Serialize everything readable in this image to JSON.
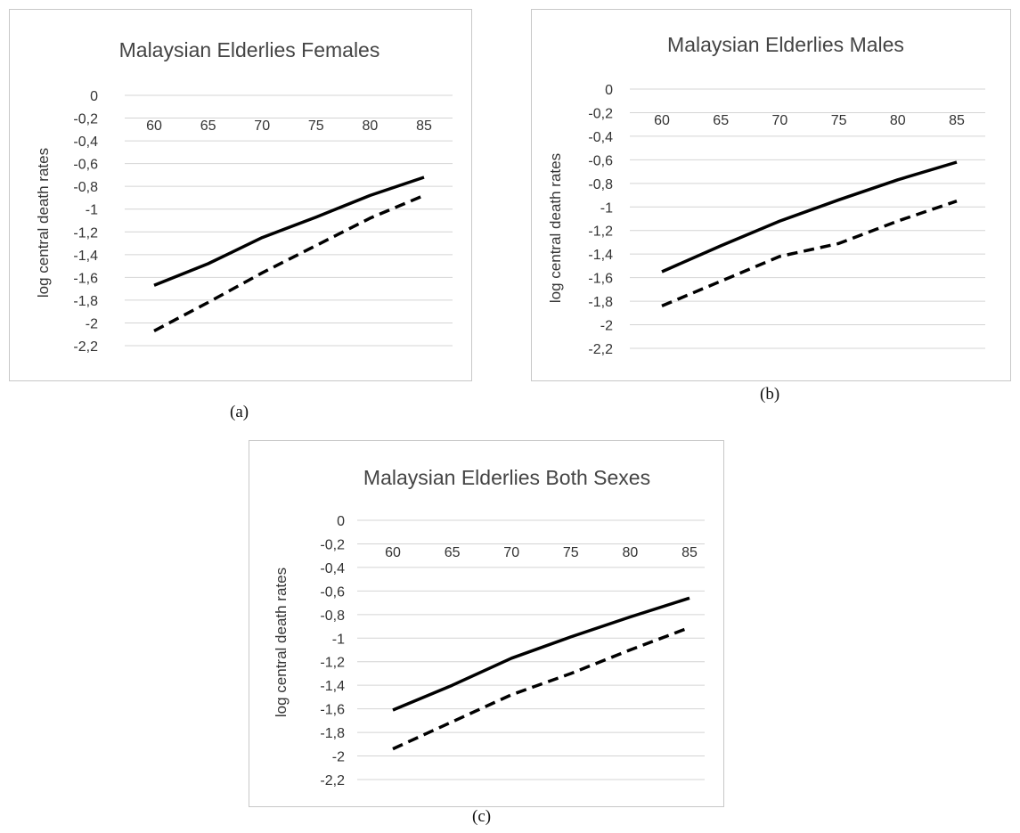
{
  "captions": [
    "(a)",
    "(b)",
    "(c)"
  ],
  "chart_data": [
    {
      "type": "line",
      "title": "Malaysian Elderlies Females",
      "ylabel": "log central death rates",
      "xlabel": "",
      "categories": [
        "60",
        "65",
        "70",
        "75",
        "80",
        "85"
      ],
      "yticks": [
        "0",
        "-0,2",
        "-0,4",
        "-0,6",
        "-0,8",
        "-1",
        "-1,2",
        "-1,4",
        "-1,6",
        "-1,8",
        "-2",
        "-2,2"
      ],
      "ylim": [
        -2.2,
        0
      ],
      "grid": true,
      "x_axis_position": "top",
      "series": [
        {
          "style": "solid",
          "color": "#000000",
          "values": [
            -1.67,
            -1.48,
            -1.25,
            -1.07,
            -0.88,
            -0.72
          ]
        },
        {
          "style": "dashed",
          "color": "#000000",
          "values": [
            -2.07,
            -1.82,
            -1.56,
            -1.32,
            -1.08,
            -0.88
          ]
        }
      ]
    },
    {
      "type": "line",
      "title": "Malaysian Elderlies Males",
      "ylabel": "log central death rates",
      "xlabel": "",
      "categories": [
        "60",
        "65",
        "70",
        "75",
        "80",
        "85"
      ],
      "yticks": [
        "0",
        "-0,2",
        "-0,4",
        "-0,6",
        "-0,8",
        "-1",
        "-1,2",
        "-1,4",
        "-1,6",
        "-1,8",
        "-2",
        "-2,2"
      ],
      "ylim": [
        -2.2,
        0
      ],
      "grid": true,
      "x_axis_position": "top",
      "series": [
        {
          "style": "solid",
          "color": "#000000",
          "values": [
            -1.55,
            -1.33,
            -1.12,
            -0.94,
            -0.77,
            -0.62
          ]
        },
        {
          "style": "dashed",
          "color": "#000000",
          "values": [
            -1.84,
            -1.63,
            -1.42,
            -1.31,
            -1.12,
            -0.95
          ]
        }
      ]
    },
    {
      "type": "line",
      "title": "Malaysian Elderlies Both Sexes",
      "ylabel": "log central death rates",
      "xlabel": "",
      "categories": [
        "60",
        "65",
        "70",
        "75",
        "80",
        "85"
      ],
      "yticks": [
        "0",
        "-0,2",
        "-0,4",
        "-0,6",
        "-0,8",
        "-1",
        "-1,2",
        "-1,4",
        "-1,6",
        "-1,8",
        "-2",
        "-2,2"
      ],
      "ylim": [
        -2.2,
        0
      ],
      "grid": true,
      "x_axis_position": "top",
      "series": [
        {
          "style": "solid",
          "color": "#000000",
          "values": [
            -1.61,
            -1.4,
            -1.17,
            -0.99,
            -0.82,
            -0.66
          ]
        },
        {
          "style": "dashed",
          "color": "#000000",
          "values": [
            -1.94,
            -1.71,
            -1.48,
            -1.3,
            -1.1,
            -0.91
          ]
        }
      ]
    }
  ]
}
